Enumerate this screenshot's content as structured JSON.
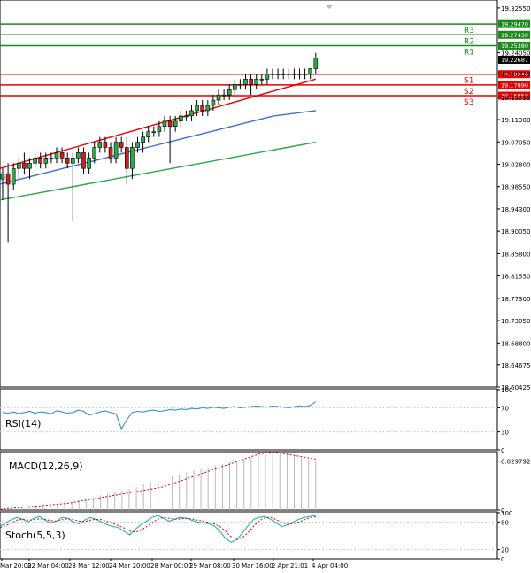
{
  "chart_data": {
    "type": "candlestick",
    "price_axis": {
      "ticks": [
        "19.32550",
        "19.24050",
        "19.20025",
        "19.15550",
        "19.11300",
        "19.07050",
        "19.02800",
        "18.98550",
        "18.94300",
        "18.90050",
        "18.85800",
        "18.81550",
        "18.77300",
        "18.73050",
        "18.68800",
        "18.64675",
        "18.60425"
      ],
      "ylim": [
        18.60425,
        19.3405
      ]
    },
    "last_price": "19.22687",
    "levels": [
      {
        "name": "R3",
        "value": 19.2947,
        "label": "19.29470",
        "color": "#1b8a1b"
      },
      {
        "name": "R2",
        "value": 19.2743,
        "label": "19.27430",
        "color": "#1b8a1b"
      },
      {
        "name": "R1",
        "value": 19.2538,
        "label": "19.25380",
        "color": "#1b8a1b"
      },
      {
        "name": "S1",
        "value": 19.1994,
        "label": "19.19940",
        "color": "#e60000"
      },
      {
        "name": "S2",
        "value": 19.1789,
        "label": "19.17890",
        "color": "#e60000"
      },
      {
        "name": "S3",
        "value": 19.1585,
        "label": "19.15850",
        "color": "#e60000"
      }
    ],
    "candles": [
      [
        19.0,
        19.02,
        18.96,
        19.01
      ],
      [
        19.01,
        19.03,
        18.88,
        18.99
      ],
      [
        18.99,
        19.03,
        18.98,
        19.02
      ],
      [
        19.02,
        19.04,
        19.0,
        19.03
      ],
      [
        19.03,
        19.05,
        19.01,
        19.02
      ],
      [
        19.02,
        19.04,
        19.0,
        19.03
      ],
      [
        19.03,
        19.05,
        19.02,
        19.04
      ],
      [
        19.04,
        19.05,
        19.02,
        19.03
      ],
      [
        19.03,
        19.05,
        19.02,
        19.04
      ],
      [
        19.04,
        19.05,
        19.03,
        19.04
      ],
      [
        19.04,
        19.06,
        19.03,
        19.05
      ],
      [
        19.05,
        19.06,
        19.03,
        19.04
      ],
      [
        19.04,
        19.05,
        19.02,
        19.03
      ],
      [
        19.03,
        19.05,
        18.92,
        19.04
      ],
      [
        19.04,
        19.06,
        19.03,
        19.05
      ],
      [
        19.05,
        19.06,
        19.01,
        19.02
      ],
      [
        19.02,
        19.05,
        19.01,
        19.04
      ],
      [
        19.04,
        19.07,
        19.03,
        19.06
      ],
      [
        19.06,
        19.08,
        19.05,
        19.07
      ],
      [
        19.07,
        19.08,
        19.05,
        19.06
      ],
      [
        19.06,
        19.07,
        19.03,
        19.04
      ],
      [
        19.04,
        19.08,
        19.03,
        19.07
      ],
      [
        19.07,
        19.08,
        19.05,
        19.06
      ],
      [
        19.06,
        19.08,
        18.99,
        19.02
      ],
      [
        19.02,
        19.07,
        19.0,
        19.06
      ],
      [
        19.06,
        19.08,
        19.05,
        19.07
      ],
      [
        19.07,
        19.09,
        19.05,
        19.08
      ],
      [
        19.08,
        19.1,
        19.07,
        19.09
      ],
      [
        19.09,
        19.1,
        19.08,
        19.09
      ],
      [
        19.09,
        19.11,
        19.08,
        19.1
      ],
      [
        19.1,
        19.12,
        19.09,
        19.11
      ],
      [
        19.11,
        19.12,
        19.03,
        19.1
      ],
      [
        19.1,
        19.12,
        19.09,
        19.11
      ],
      [
        19.11,
        19.13,
        19.1,
        19.12
      ],
      [
        19.12,
        19.13,
        19.11,
        19.12
      ],
      [
        19.12,
        19.14,
        19.11,
        19.13
      ],
      [
        19.13,
        19.15,
        19.12,
        19.14
      ],
      [
        19.14,
        19.15,
        19.12,
        19.13
      ],
      [
        19.13,
        19.15,
        19.12,
        19.14
      ],
      [
        19.14,
        19.16,
        19.13,
        19.15
      ],
      [
        19.15,
        19.17,
        19.14,
        19.16
      ],
      [
        19.16,
        19.17,
        19.15,
        19.16
      ],
      [
        19.16,
        19.18,
        19.15,
        19.17
      ],
      [
        19.17,
        19.19,
        19.16,
        19.18
      ],
      [
        19.18,
        19.19,
        19.17,
        19.18
      ],
      [
        19.18,
        19.2,
        19.17,
        19.19
      ],
      [
        19.19,
        19.2,
        19.16,
        19.18
      ],
      [
        19.18,
        19.2,
        19.17,
        19.19
      ],
      [
        19.19,
        19.2,
        19.18,
        19.19
      ],
      [
        19.19,
        19.21,
        19.18,
        19.2
      ],
      [
        19.2,
        19.21,
        19.19,
        19.2
      ],
      [
        19.2,
        19.21,
        19.19,
        19.2
      ],
      [
        19.2,
        19.21,
        19.19,
        19.2
      ],
      [
        19.2,
        19.21,
        19.19,
        19.2
      ],
      [
        19.2,
        19.21,
        19.19,
        19.2
      ],
      [
        19.2,
        19.21,
        19.19,
        19.2
      ],
      [
        19.2,
        19.21,
        19.19,
        19.2
      ],
      [
        19.2,
        19.21,
        19.19,
        19.21
      ],
      [
        19.21,
        19.24,
        19.2,
        19.23
      ]
    ],
    "moving_averages": [
      {
        "color": "#e60000",
        "values": [
          19.02,
          19.03,
          19.04,
          19.05,
          19.06,
          19.07,
          19.08,
          19.09,
          19.1,
          19.11,
          19.12,
          19.13,
          19.14,
          19.15,
          19.16,
          19.17,
          19.18,
          19.19
        ]
      },
      {
        "color": "#3f6fd6",
        "values": [
          18.99,
          19.0,
          19.01,
          19.02,
          19.03,
          19.04,
          19.05,
          19.06,
          19.07,
          19.08,
          19.09,
          19.1,
          19.11,
          19.12,
          19.125,
          19.13
        ]
      },
      {
        "color": "#2ea84a",
        "values": [
          18.96,
          18.97,
          18.98,
          18.99,
          19.0,
          19.01,
          19.02,
          19.03,
          19.04,
          19.05,
          19.06,
          19.07
        ]
      }
    ],
    "time_labels": [
      "Mar 20:00",
      "22 Mar 04:00",
      "23 Mar 12:00",
      "24 Mar 20:00",
      "28 Mar 00:00",
      "29 Mar 08:00",
      "30 Mar 16:00",
      "2 Apr 21:01",
      "4 Apr 04:00"
    ],
    "rsi": {
      "label": "RSI(14)",
      "ticks": [
        "100",
        "70",
        "30",
        "0"
      ],
      "ylim": [
        0,
        100
      ],
      "values": [
        62,
        61,
        63,
        60,
        62,
        64,
        61,
        63,
        62,
        60,
        65,
        63,
        61,
        62,
        66,
        64,
        58,
        60,
        63,
        65,
        62,
        60,
        35,
        50,
        62,
        64,
        63,
        65,
        66,
        64,
        65,
        67,
        66,
        68,
        67,
        69,
        68,
        70,
        69,
        71,
        70,
        69,
        71,
        72,
        70,
        71,
        72,
        73,
        72,
        71,
        73,
        72,
        71,
        70,
        72,
        73,
        72,
        74,
        80
      ]
    },
    "macd": {
      "label": "MACD(12,26,9)",
      "ticks": [
        "0.029792",
        "0"
      ],
      "ylim": [
        0,
        0.035
      ],
      "histogram": [
        0.001,
        0.001,
        0.002,
        0.002,
        0.002,
        0.003,
        0.003,
        0.004,
        0.004,
        0.005,
        0.005,
        0.006,
        0.007,
        0.008,
        0.009,
        0.01,
        0.011,
        0.012,
        0.013,
        0.014,
        0.016,
        0.017,
        0.019,
        0.02,
        0.021,
        0.022,
        0.023,
        0.024,
        0.025,
        0.026,
        0.027,
        0.028,
        0.029,
        0.03,
        0.031,
        0.032,
        0.033,
        0.034,
        0.035,
        0.035,
        0.034,
        0.033,
        0.032,
        0.031,
        0.03
      ],
      "signal": [
        0.0005,
        0.001,
        0.0015,
        0.002,
        0.0025,
        0.003,
        0.0035,
        0.004,
        0.005,
        0.006,
        0.007,
        0.008,
        0.009,
        0.01,
        0.011,
        0.012,
        0.013,
        0.014,
        0.016,
        0.018,
        0.02,
        0.022,
        0.024,
        0.026,
        0.028,
        0.03,
        0.032,
        0.034,
        0.035,
        0.035,
        0.034,
        0.033,
        0.032,
        0.031
      ]
    },
    "stoch": {
      "label": "Stoch(5,5,3)",
      "ticks": [
        "100",
        "80",
        "20",
        "0"
      ],
      "ylim": [
        0,
        100
      ],
      "k": [
        70,
        78,
        85,
        90,
        86,
        80,
        88,
        92,
        84,
        78,
        82,
        90,
        88,
        80,
        76,
        84,
        90,
        86,
        80,
        74,
        70,
        68,
        60,
        52,
        64,
        74,
        82,
        90,
        94,
        88,
        82,
        86,
        90,
        88,
        84,
        80,
        78,
        76,
        72,
        60,
        44,
        36,
        42,
        56,
        72,
        86,
        90,
        92,
        86,
        78,
        70,
        74,
        80,
        86,
        90,
        92,
        94
      ],
      "d": [
        68,
        72,
        78,
        84,
        86,
        84,
        85,
        87,
        86,
        83,
        82,
        85,
        87,
        85,
        82,
        81,
        84,
        86,
        85,
        81,
        77,
        72,
        67,
        60,
        58,
        62,
        70,
        79,
        86,
        90,
        88,
        86,
        87,
        88,
        87,
        84,
        82,
        79,
        76,
        70,
        60,
        48,
        42,
        46,
        57,
        71,
        83,
        89,
        90,
        85,
        79,
        75,
        76,
        80,
        85,
        89,
        92
      ]
    }
  }
}
